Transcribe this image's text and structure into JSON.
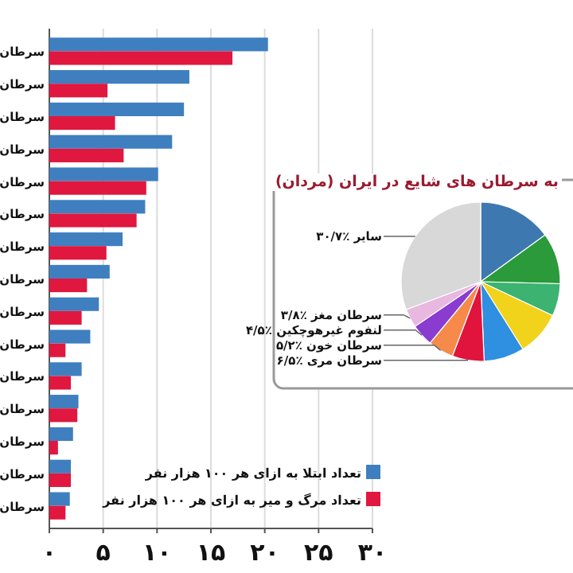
{
  "chart_data": [
    {
      "type": "bar",
      "orientation": "horizontal",
      "categories": [
        "سرطان",
        "سرطان",
        "سرطان",
        "سرطان",
        "سرطان",
        "سرطان",
        "سرطان",
        "سرطان",
        "سرطان",
        "سرطان",
        "سرطان",
        "سرطان",
        "سرطان",
        "سرطان",
        "سرطان"
      ],
      "series": [
        {
          "name": "تعداد ابتلا به ازای هر ۱۰۰ هزار نفر",
          "color": "#3f7fc0",
          "values": [
            20.3,
            13.0,
            12.5,
            11.4,
            10.1,
            8.9,
            6.8,
            5.6,
            4.6,
            3.8,
            3.0,
            2.7,
            2.2,
            2.0,
            1.9
          ]
        },
        {
          "name": "تعداد مرگ و میر به ازای هر ۱۰۰ هزار نفر",
          "color": "#e0173f",
          "values": [
            17.0,
            5.4,
            6.1,
            6.9,
            9.0,
            8.1,
            5.3,
            3.5,
            3.0,
            1.5,
            2.0,
            2.6,
            0.8,
            2.0,
            1.5
          ]
        }
      ],
      "xlim": [
        0,
        30
      ],
      "xticks": [
        {
          "value": 0,
          "label": "۰"
        },
        {
          "value": 5,
          "label": "۵"
        },
        {
          "value": 10,
          "label": "۱۰"
        },
        {
          "value": 15,
          "label": "۱۵"
        },
        {
          "value": 20,
          "label": "۲۰"
        },
        {
          "value": 25,
          "label": "۲۵"
        },
        {
          "value": 30,
          "label": "۳۰"
        }
      ],
      "grid": "x",
      "legend": "bottom right"
    },
    {
      "type": "pie",
      "title": "به سرطان های شایع در ایران (مردان)",
      "categories": [
        null,
        null,
        null,
        null,
        null,
        "سرطان مری",
        "سرطان خون",
        "لنفوم غیرهوچکین",
        "سرطان مغز",
        "سایر"
      ],
      "values": [
        15.0,
        10.4,
        6.6,
        9.1,
        8.2,
        6.5,
        5.2,
        4.5,
        3.8,
        30.7
      ],
      "colors": [
        "#3d78b0",
        "#2a9a3a",
        "#3cb371",
        "#f2d31b",
        "#2f8fe0",
        "#e0143c",
        "#f58a4a",
        "#8a3bd0",
        "#e8b8e0",
        "#d8d8d8"
      ],
      "value_labels": [
        null,
        null,
        null,
        null,
        null,
        "٪۶/۵",
        "٪۵/۲",
        "٪۴/۵",
        "٪۳/۸",
        "٪۳۰/۷"
      ]
    }
  ]
}
